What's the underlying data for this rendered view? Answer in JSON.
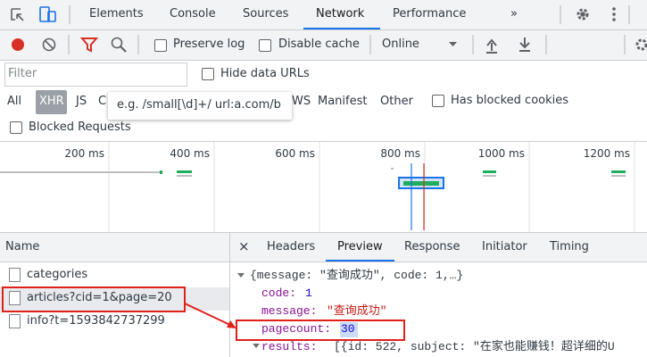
{
  "main_tabs": [
    "Elements",
    "Console",
    "Sources",
    "Network",
    "Performance",
    "»"
  ],
  "toolbar": {
    "preserve_log": "Preserve log",
    "disable_cache": "Disable cache",
    "throttling": "Online"
  },
  "filter_bar": {
    "placeholder": "Filter",
    "hide_data_urls": "Hide data URLs",
    "types": [
      "All",
      "XHR",
      "JS",
      "C",
      "WS",
      "Manifest",
      "Other"
    ],
    "has_blocked_cookies": "Has blocked cookies",
    "blocked_requests": "Blocked Requests",
    "tooltip": "e.g. /small[\\d]+/ url:a.com/b"
  },
  "timeline": {
    "ticks": [
      "200 ms",
      "400 ms",
      "600 ms",
      "800 ms",
      "1000 ms",
      "1200 ms"
    ]
  },
  "requests": {
    "header": "Name",
    "rows": [
      "categories",
      "articles?cid=1&page=20",
      "info?t=1593842737299"
    ]
  },
  "detail": {
    "close": "×",
    "tabs": [
      "Headers",
      "Preview",
      "Response",
      "Initiator",
      "Timing"
    ],
    "preview": {
      "summary": "{message: \"查询成功\", code: 1,…}",
      "lines": [
        {
          "key": "code:",
          "value": "1"
        },
        {
          "key": "message:",
          "value": "\"查询成功\""
        },
        {
          "key": "pagecount:",
          "value": "30"
        }
      ],
      "results": {
        "key": "results:",
        "value": "[{id: 522, subject: \"在家也能赚钱！超详细的U"
      }
    }
  }
}
